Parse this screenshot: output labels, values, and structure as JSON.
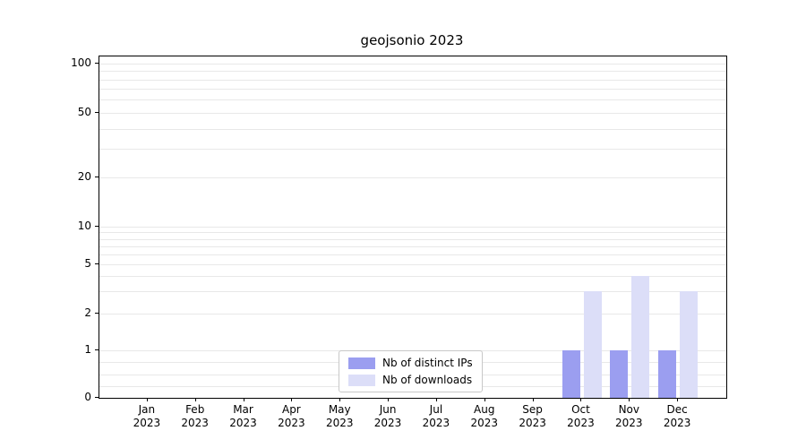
{
  "chart_data": {
    "type": "bar",
    "title": "geojsonio 2023",
    "categories": [
      "Jan 2023",
      "Feb 2023",
      "Mar 2023",
      "Apr 2023",
      "May 2023",
      "Jun 2023",
      "Jul 2023",
      "Aug 2023",
      "Sep 2023",
      "Oct 2023",
      "Nov 2023",
      "Dec 2023"
    ],
    "series": [
      {
        "name": "Nb of distinct IPs",
        "color": "#9b9ef0",
        "values": [
          0,
          0,
          0,
          0,
          0,
          0,
          0,
          0,
          0,
          1,
          1,
          1
        ]
      },
      {
        "name": "Nb of downloads",
        "color": "#dcdef8",
        "values": [
          0,
          0,
          0,
          0,
          0,
          0,
          0,
          0,
          0,
          3,
          4,
          3
        ]
      }
    ],
    "y_ticks": [
      0,
      1,
      2,
      5,
      10,
      20,
      50,
      100
    ],
    "y_scale": "symlog",
    "ylim": [
      0,
      100
    ],
    "grid": true,
    "legend_position": "bottom-center-inside"
  },
  "colors": {
    "grid": "#e8e8e8",
    "axis": "#000000",
    "legend_border": "#c8c8c8"
  }
}
